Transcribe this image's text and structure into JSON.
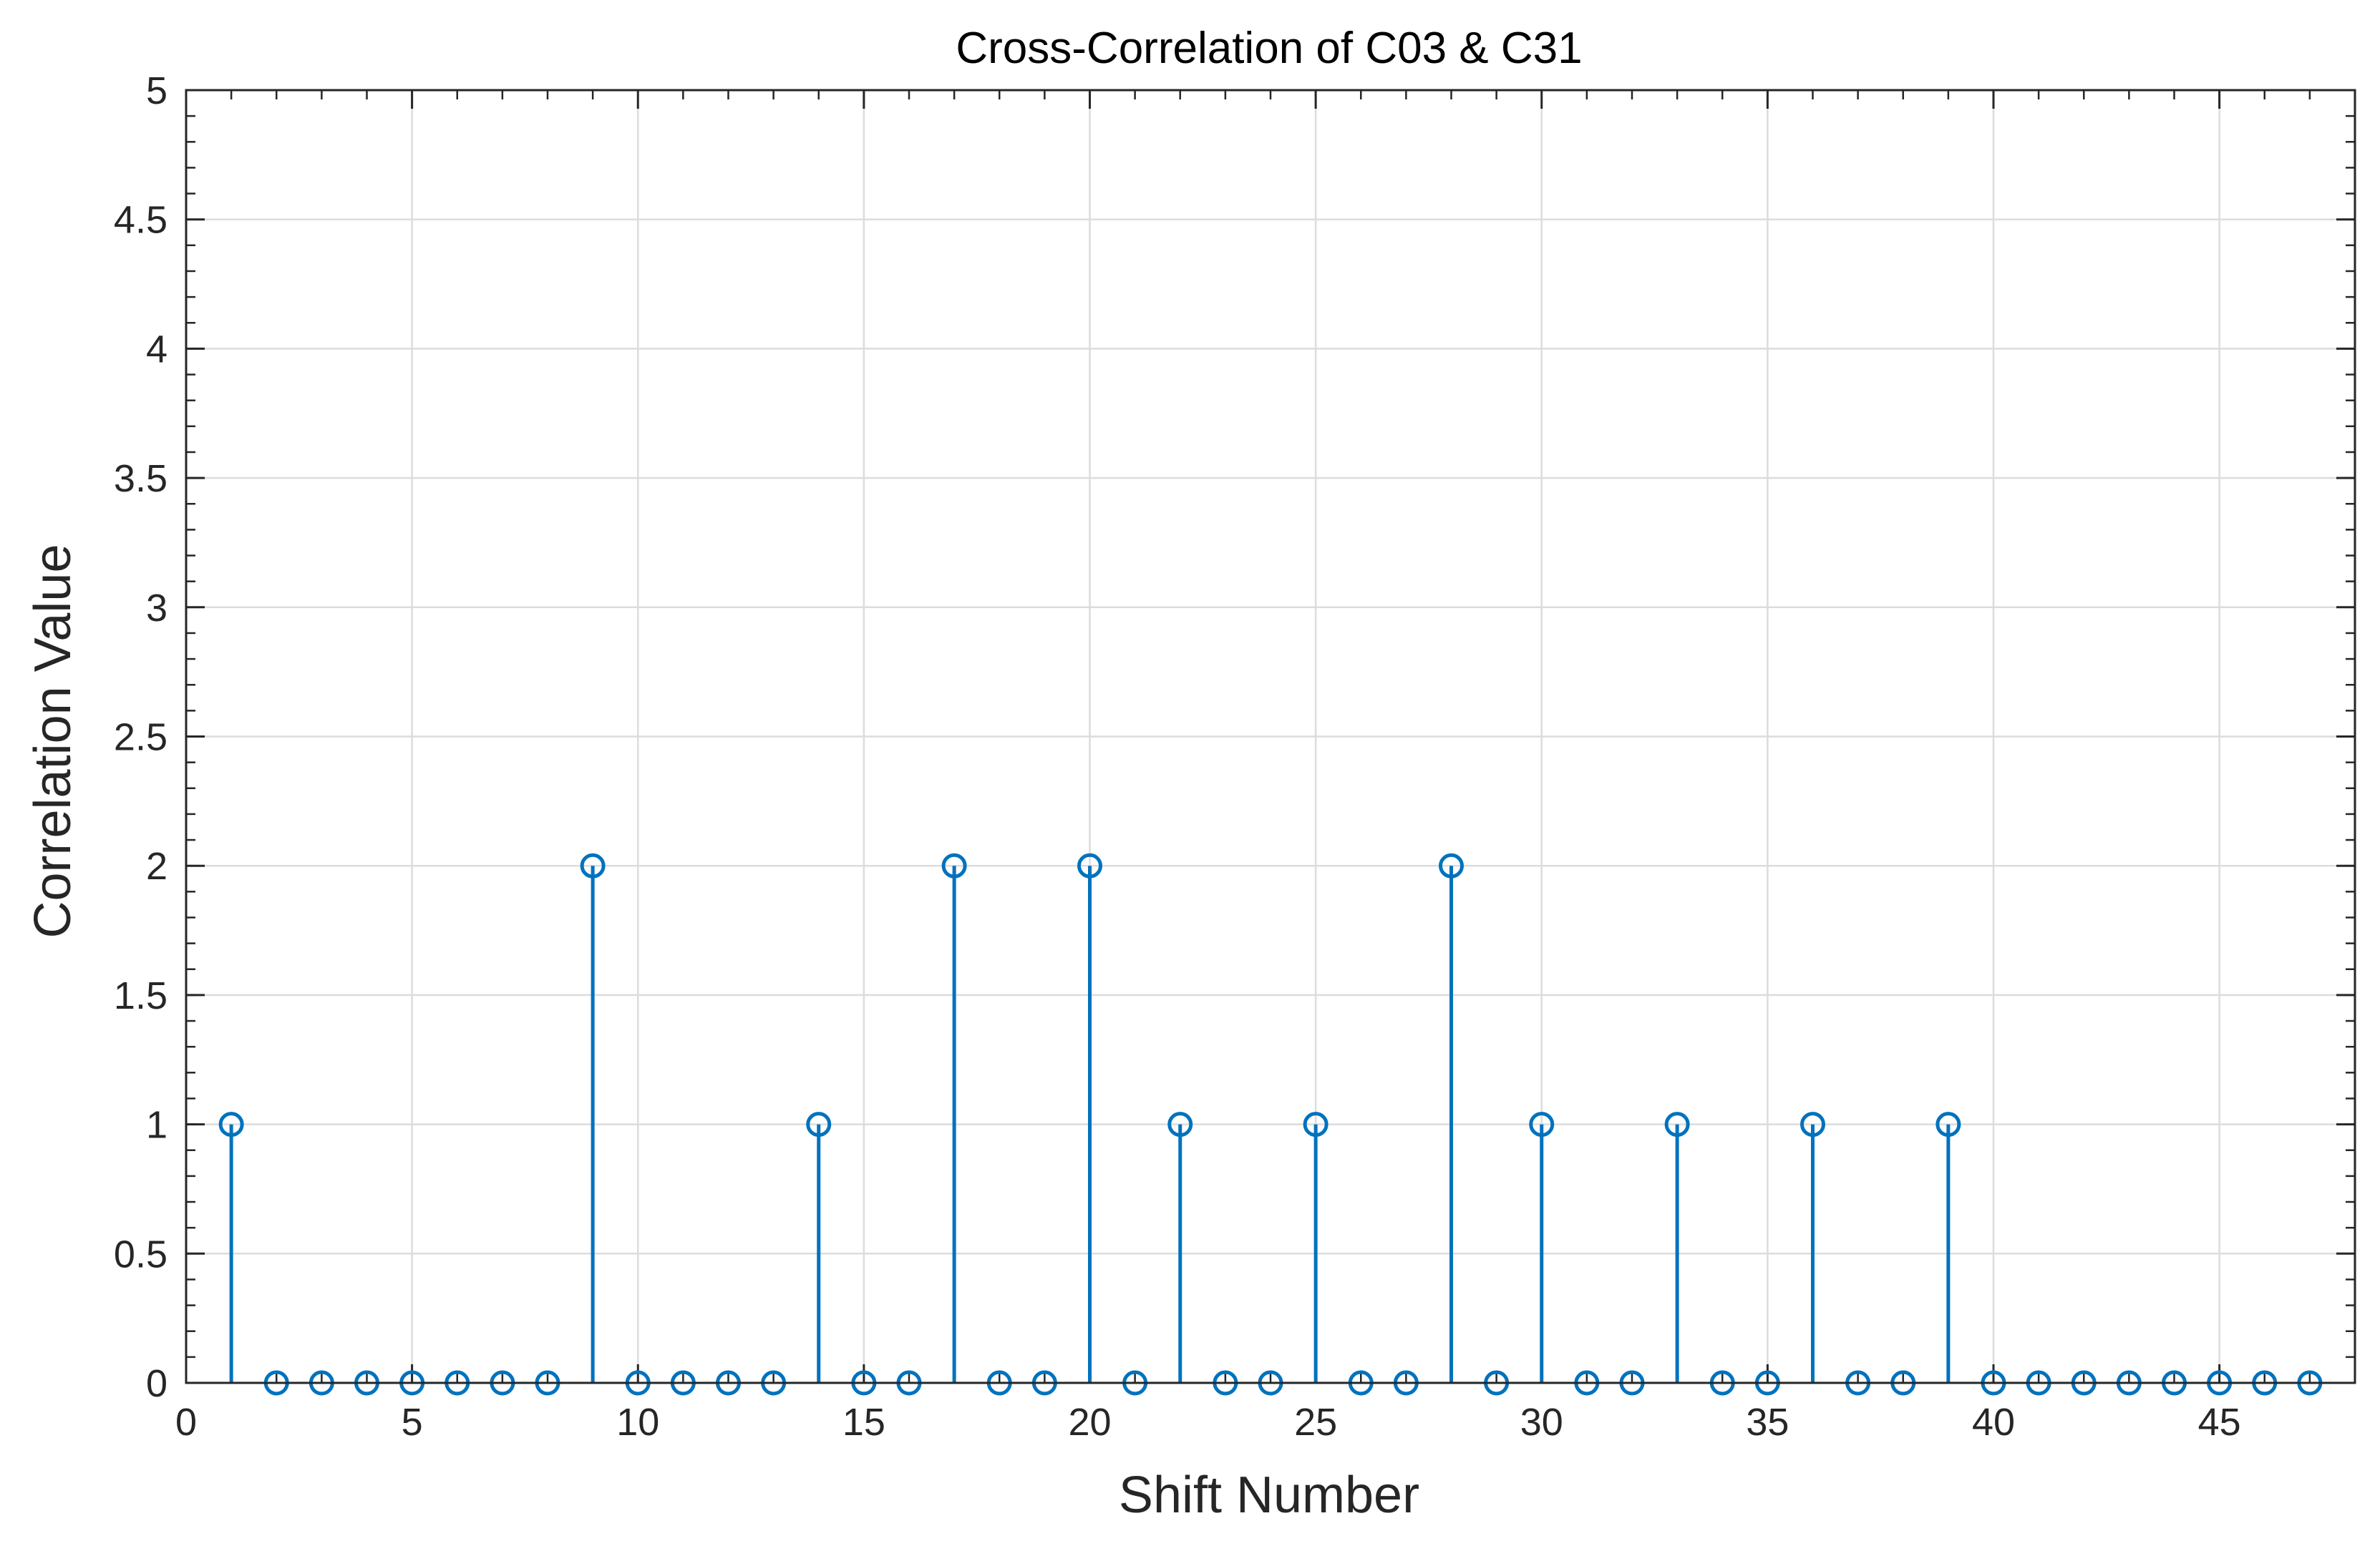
{
  "chart_data": {
    "type": "stem",
    "title": "Cross-Correlation of C03 & C31",
    "xlabel": "Shift Number",
    "ylabel": "Correlation Value",
    "xlim": [
      0,
      48
    ],
    "ylim": [
      0,
      5
    ],
    "xticks": [
      0,
      5,
      10,
      15,
      20,
      25,
      30,
      35,
      40,
      45
    ],
    "xtick_labels": [
      "0",
      "5",
      "10",
      "15",
      "20",
      "25",
      "30",
      "35",
      "40",
      "45"
    ],
    "yticks": [
      0,
      0.5,
      1,
      1.5,
      2,
      2.5,
      3,
      3.5,
      4,
      4.5,
      5
    ],
    "ytick_labels": [
      "0",
      "0.5",
      "1",
      "1.5",
      "2",
      "2.5",
      "3",
      "3.5",
      "4",
      "4.5",
      "5"
    ],
    "grid": true,
    "series": [
      {
        "name": "Cross-correlation",
        "color": "#0072BD",
        "x": [
          1,
          2,
          3,
          4,
          5,
          6,
          7,
          8,
          9,
          10,
          11,
          12,
          13,
          14,
          15,
          16,
          17,
          18,
          19,
          20,
          21,
          22,
          23,
          24,
          25,
          26,
          27,
          28,
          29,
          30,
          31,
          32,
          33,
          34,
          35,
          36,
          37,
          38,
          39,
          40,
          41,
          42,
          43,
          44,
          45,
          46,
          47
        ],
        "y": [
          1,
          0,
          0,
          0,
          0,
          0,
          0,
          0,
          2,
          0,
          0,
          0,
          0,
          1,
          0,
          0,
          2,
          0,
          0,
          2,
          0,
          1,
          0,
          0,
          1,
          0,
          0,
          2,
          0,
          1,
          0,
          0,
          1,
          0,
          0,
          1,
          0,
          0,
          1,
          0,
          0,
          0,
          0,
          0,
          0,
          0,
          0
        ]
      }
    ]
  }
}
